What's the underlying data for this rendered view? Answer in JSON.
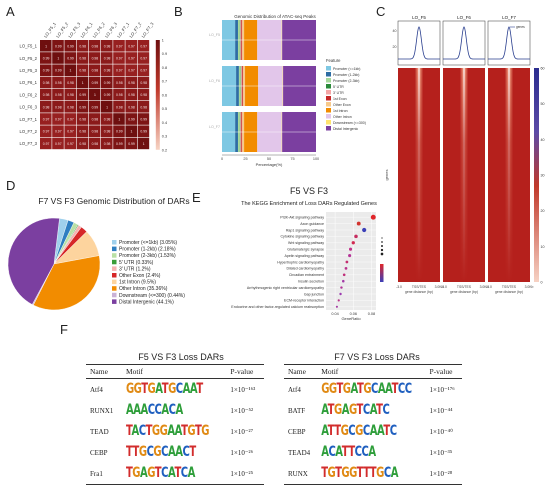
{
  "panels": {
    "a": "A",
    "b": "B",
    "c": "C",
    "d": "D",
    "e": "E",
    "f": "F"
  },
  "colors": {
    "heat_dark": "#7a1212",
    "heat_mid": "#b22222",
    "heat_light": "#f2c0b0"
  },
  "panel_a": {
    "labels": [
      "LO_F5_1",
      "LO_F5_2",
      "LO_F5_3",
      "LO_F6_1",
      "LO_F6_2",
      "LO_F6_3",
      "LO_F7_1",
      "LO_F7_2",
      "LO_F7_3"
    ],
    "matrix": [
      [
        1,
        0.99,
        0.99,
        0.98,
        0.98,
        0.98,
        0.97,
        0.97,
        0.97
      ],
      [
        0.99,
        1,
        0.99,
        0.98,
        0.98,
        0.98,
        0.97,
        0.97,
        0.97
      ],
      [
        0.99,
        0.99,
        1,
        0.98,
        0.98,
        0.98,
        0.97,
        0.97,
        0.97
      ],
      [
        0.98,
        0.98,
        0.98,
        1,
        0.99,
        0.99,
        0.98,
        0.98,
        0.98
      ],
      [
        0.98,
        0.98,
        0.98,
        0.99,
        1,
        0.99,
        0.98,
        0.98,
        0.98
      ],
      [
        0.98,
        0.98,
        0.98,
        0.99,
        0.99,
        1,
        0.98,
        0.98,
        0.98
      ],
      [
        0.97,
        0.97,
        0.97,
        0.98,
        0.98,
        0.98,
        1,
        0.99,
        0.99
      ],
      [
        0.97,
        0.97,
        0.97,
        0.98,
        0.98,
        0.98,
        0.99,
        1,
        0.99
      ],
      [
        0.97,
        0.97,
        0.97,
        0.98,
        0.98,
        0.98,
        0.99,
        0.99,
        1
      ]
    ],
    "colorbar_ticks": [
      "1",
      "0.9",
      "0.8",
      "0.7",
      "0.6",
      "0.5",
      "0.4",
      "0.3",
      "0.2"
    ]
  },
  "panel_b": {
    "title": "Genomic Distribution of ATAC-seq Peaks",
    "rows": [
      "LO_F5",
      "LO_F6",
      "LO_F7"
    ],
    "xlabel": "Percentage(%)",
    "xticks": [
      "0",
      "25",
      "50",
      "75",
      "100"
    ],
    "legend_title": "Feature",
    "features": [
      {
        "name": "Promoter (<=1kb)",
        "color": "#7ec8e3",
        "pct": [
          14,
          15,
          14
        ]
      },
      {
        "name": "Promoter (1-2kb)",
        "color": "#2e6da4",
        "pct": [
          3,
          3,
          3
        ]
      },
      {
        "name": "Promoter (2-3kb)",
        "color": "#a6d89b",
        "pct": [
          2,
          2,
          2
        ]
      },
      {
        "name": "5' UTR",
        "color": "#2a8a3a",
        "pct": [
          0.5,
          0.5,
          0.5
        ]
      },
      {
        "name": "3' UTR",
        "color": "#f4a6a6",
        "pct": [
          1,
          1,
          1
        ]
      },
      {
        "name": "1st Exon",
        "color": "#c62828",
        "pct": [
          1,
          1,
          1
        ]
      },
      {
        "name": "Other Exon",
        "color": "#f7c98b",
        "pct": [
          2,
          2,
          2
        ]
      },
      {
        "name": "1st Intron",
        "color": "#f28c00",
        "pct": [
          14,
          14,
          14
        ]
      },
      {
        "name": "Other Intron",
        "color": "#e2c6ea",
        "pct": [
          26,
          26,
          26
        ]
      },
      {
        "name": "Downstream (<=300)",
        "color": "#ffe36e",
        "pct": [
          0.5,
          0.5,
          0.5
        ]
      },
      {
        "name": "Distal Intergenic",
        "color": "#7b3fa0",
        "pct": [
          36,
          35,
          36
        ]
      }
    ]
  },
  "panel_c": {
    "groups": [
      "LO_F5",
      "LO_F6",
      "LO_F7"
    ],
    "profile_yticks": [
      "40",
      "20"
    ],
    "profile_legend": "genes",
    "xticks": [
      "-3.0",
      "TSS/TES",
      "3.0Kb"
    ],
    "xlabel": "gene distance (bp)",
    "ylabel": "genes",
    "colorbar_ticks": [
      "60",
      "50",
      "40",
      "30",
      "20",
      "10",
      "0"
    ]
  },
  "chart_data": {
    "type": "pie",
    "title": "F7 VS F3 Genomic Distribution of DARs",
    "categories": [
      "Promoter (<=1kb) (3.05%)",
      "Promoter (1-2kb) (2.18%)",
      "Promoter (2-3kb) (1.53%)",
      "5' UTR (0.33%)",
      "3' UTR (1.2%)",
      "Other Exon (2.4%)",
      "1st Intron (9.5%)",
      "Other Intron (35.36%)",
      "Downstream (<=300) (0.44%)",
      "Distal Intergenic (44.1%)"
    ],
    "values": [
      3.05,
      2.18,
      1.53,
      0.33,
      1.2,
      2.4,
      9.5,
      35.36,
      0.44,
      44.1
    ],
    "colors": [
      "#9fd0ec",
      "#2f7fc1",
      "#b9e0a5",
      "#3a9d3a",
      "#f6b2b2",
      "#d62728",
      "#fdd49e",
      "#f28c00",
      "#cab2d6",
      "#7b3fa0"
    ]
  },
  "panel_e": {
    "title": "F5 VS F3",
    "subtitle": "The KEGG Enrichment of Loss DARs Regulated Genes",
    "xlabel": "GeneRatio",
    "xticks": [
      "0.04",
      "0.06",
      "0.08"
    ],
    "xlim": [
      0.03,
      0.085
    ],
    "pathways": [
      {
        "name": "PI3K-Akt signaling pathway",
        "ratio": 0.082,
        "size": 4.5,
        "color": "#e0262a"
      },
      {
        "name": "Axon guidance",
        "ratio": 0.066,
        "size": 3.5,
        "color": "#d2332e"
      },
      {
        "name": "Rap1 signaling pathway",
        "ratio": 0.072,
        "size": 3.8,
        "color": "#3b3fb8"
      },
      {
        "name": "Cytokine signaling pathway",
        "ratio": 0.063,
        "size": 3.2,
        "color": "#c62d60"
      },
      {
        "name": "Wnt signaling pathway",
        "ratio": 0.06,
        "size": 3.0,
        "color": "#d12b52"
      },
      {
        "name": "Glutamatergic synapse",
        "ratio": 0.057,
        "size": 2.8,
        "color": "#c2308a"
      },
      {
        "name": "Apelin signaling pathway",
        "ratio": 0.056,
        "size": 2.8,
        "color": "#b43397"
      },
      {
        "name": "Hypertrophic cardiomyopathy",
        "ratio": 0.053,
        "size": 2.5,
        "color": "#c32f70"
      },
      {
        "name": "Dilated cardiomyopathy",
        "ratio": 0.052,
        "size": 2.5,
        "color": "#b8338c"
      },
      {
        "name": "Circadian entrainment",
        "ratio": 0.05,
        "size": 2.4,
        "color": "#c02f7a"
      },
      {
        "name": "Insulin secretion",
        "ratio": 0.049,
        "size": 2.3,
        "color": "#a23aa6"
      },
      {
        "name": "Arrhythmogenic right ventricular cardiomyopathy",
        "ratio": 0.047,
        "size": 2.2,
        "color": "#b03495"
      },
      {
        "name": "Gap junction",
        "ratio": 0.046,
        "size": 2.2,
        "color": "#9c3ab0"
      },
      {
        "name": "ECM-receptor interaction",
        "ratio": 0.044,
        "size": 2.0,
        "color": "#b8348a"
      },
      {
        "name": "Endocrine and other factor-regulated calcium reabsorption",
        "ratio": 0.042,
        "size": 1.9,
        "color": "#a53aa4"
      }
    ]
  },
  "tables": [
    {
      "title": "F5 VS F3 Loss DARs",
      "headers": [
        "Name",
        "Motif",
        "P-value"
      ],
      "rows": [
        {
          "name": "Atf4",
          "motif": "GGTGATGCAAT",
          "p": "1×10⁻¹⁶³"
        },
        {
          "name": "RUNX1",
          "motif": "AAACCACA",
          "p": "1×10⁻⁵²"
        },
        {
          "name": "TEAD",
          "motif": "TACTGGAATGTG",
          "p": "1×10⁻²⁷"
        },
        {
          "name": "CEBP",
          "motif": "TTGCGCAACT",
          "p": "1×10⁻²⁶"
        },
        {
          "name": "Fra1",
          "motif": "TGAGTCATCA",
          "p": "1×10⁻²⁵"
        }
      ]
    },
    {
      "title": "F7 VS F3 Loss DARs",
      "headers": [
        "Name",
        "Motif",
        "P-value"
      ],
      "rows": [
        {
          "name": "Atf4",
          "motif": "GGTGATGCAATCC",
          "p": "1×10⁻¹⁷⁶"
        },
        {
          "name": "BATF",
          "motif": "ATGAGTCATC",
          "p": "1×10⁻⁴⁴"
        },
        {
          "name": "CEBP",
          "motif": "ATTGCGCAATC",
          "p": "1×10⁻⁴⁰"
        },
        {
          "name": "TEAD4",
          "motif": "ACATTCCA",
          "p": "1×10⁻³⁵"
        },
        {
          "name": "RUNX",
          "motif": "TGTGGTTTGCA",
          "p": "1×10⁻²⁸"
        }
      ]
    }
  ]
}
